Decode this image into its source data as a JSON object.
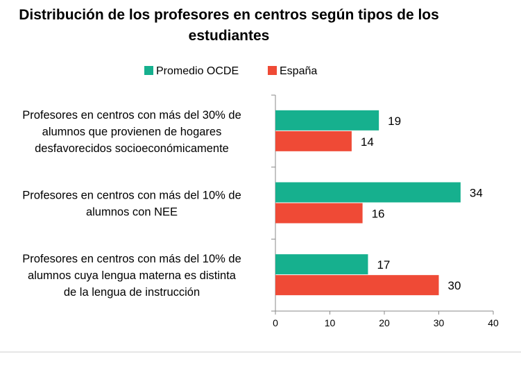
{
  "chart_data": {
    "type": "bar",
    "orientation": "horizontal",
    "title_lines": [
      "Distribución de los profesores en centros según tipos de los",
      "estudiantes"
    ],
    "categories": [
      [
        "Profesores en centros con más del 30% de",
        "alumnos que provienen de hogares",
        "desfavorecidos socioeconómicamente"
      ],
      [
        "Profesores en centros con más del 10% de",
        "alumnos con NEE"
      ],
      [
        "Profesores en centros con más del 10% de",
        "alumnos cuya lengua materna es distinta",
        "de la lengua de instrucción"
      ]
    ],
    "series": [
      {
        "name": "Promedio OCDE",
        "color": "#16b08e",
        "values": [
          19,
          34,
          17
        ]
      },
      {
        "name": "España",
        "color": "#ef4a36",
        "values": [
          14,
          16,
          30
        ]
      }
    ],
    "xlim": [
      0,
      40
    ],
    "xticks": [
      0,
      10,
      20,
      30,
      40
    ],
    "legend_position": "top",
    "grid": false,
    "xlabel": "",
    "ylabel": ""
  }
}
